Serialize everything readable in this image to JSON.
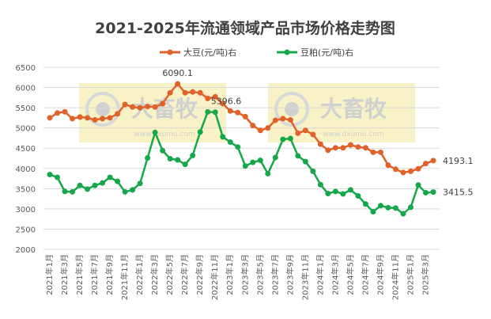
{
  "chart_data": {
    "type": "line",
    "title": "2021-2025年流通领域产品市场价格走势图",
    "ylim": [
      2000,
      6500
    ],
    "yticks": [
      2000,
      2500,
      3000,
      3500,
      4000,
      4500,
      5000,
      5500,
      6000,
      6500
    ],
    "grid": true,
    "legend_position": "top",
    "x": [
      "2021年1月",
      "2021年2月",
      "2021年3月",
      "2021年4月",
      "2021年5月",
      "2021年6月",
      "2021年7月",
      "2021年8月",
      "2021年9月",
      "2021年10月",
      "2021年11月",
      "2021年12月",
      "2022年1月",
      "2022年2月",
      "2022年3月",
      "2022年4月",
      "2022年5月",
      "2022年6月",
      "2022年7月",
      "2022年8月",
      "2022年9月",
      "2022年10月",
      "2022年11月",
      "2022年12月",
      "2023年1月",
      "2023年2月",
      "2023年3月",
      "2023年4月",
      "2023年5月",
      "2023年6月",
      "2023年7月",
      "2023年8月",
      "2023年9月",
      "2023年10月",
      "2023年11月",
      "2023年12月",
      "2024年1月",
      "2024年2月",
      "2024年3月",
      "2024年4月",
      "2024年5月",
      "2024年6月",
      "2024年7月",
      "2024年8月",
      "2024年9月",
      "2024年10月",
      "2024年11月",
      "2024年12月",
      "2025年1月",
      "2025年2月",
      "2025年3月",
      "2025年4月"
    ],
    "xtick_labels": [
      "2021年1月",
      "2021年3月",
      "2021年5月",
      "2021年7月",
      "2021年9月",
      "2021年11月",
      "2022年1月",
      "2022年3月",
      "2022年5月",
      "2022年7月",
      "2022年9月",
      "2022年11月",
      "2023年1月",
      "2023年3月",
      "2023年5月",
      "2023年7月",
      "2023年9月",
      "2023年11月",
      "2024年1月",
      "2024年3月",
      "2024年5月",
      "2024年7月",
      "2024年9月",
      "2024年11月",
      "2025年1月",
      "2025年3月"
    ],
    "series": [
      {
        "name": "大豆(元/吨)右",
        "color": "#E0622A",
        "values": [
          5250,
          5370,
          5400,
          5230,
          5270,
          5250,
          5200,
          5230,
          5250,
          5350,
          5580,
          5520,
          5500,
          5530,
          5520,
          5600,
          5870,
          6090.1,
          5870,
          5890,
          5870,
          5730,
          5770,
          5600,
          5420,
          5380,
          5280,
          5060,
          4940,
          5000,
          5190,
          5230,
          5200,
          4870,
          4940,
          4840,
          4600,
          4450,
          4510,
          4510,
          4580,
          4530,
          4510,
          4400,
          4400,
          4080,
          3980,
          3900,
          3930,
          3990,
          4120,
          4193.1
        ]
      },
      {
        "name": "豆粕(元/吨)右",
        "color": "#17A74B",
        "values": [
          3850,
          3780,
          3430,
          3420,
          3580,
          3490,
          3580,
          3640,
          3780,
          3680,
          3420,
          3470,
          3630,
          4260,
          4890,
          4440,
          4240,
          4210,
          4100,
          4320,
          4900,
          5396.6,
          5390,
          4780,
          4650,
          4530,
          4060,
          4150,
          4200,
          3870,
          4270,
          4720,
          4740,
          4310,
          4170,
          3930,
          3600,
          3380,
          3430,
          3370,
          3470,
          3320,
          3120,
          2930,
          3080,
          3030,
          3020,
          2880,
          3040,
          3590,
          3400,
          3415.5
        ]
      }
    ],
    "annotations": [
      {
        "series": 0,
        "index": 17,
        "text": "6090.1"
      },
      {
        "series": 1,
        "index": 21,
        "text": "5396.6"
      },
      {
        "series": 0,
        "index": 51,
        "text": "4193.1"
      },
      {
        "series": 1,
        "index": 51,
        "text": "3415.5"
      }
    ],
    "watermark": "大畜牧 www.dxumu.com"
  }
}
